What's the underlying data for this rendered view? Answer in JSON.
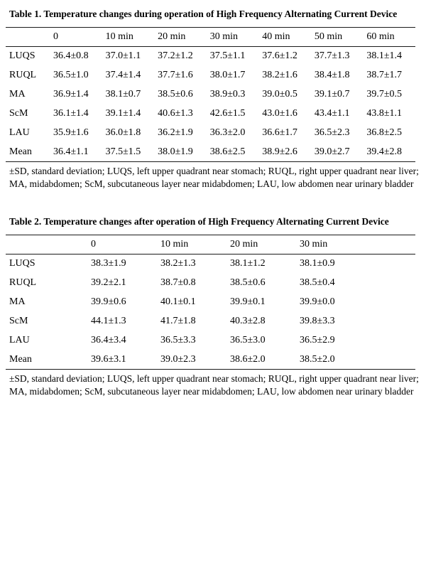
{
  "page": {
    "background": "#ffffff",
    "text_color": "#000000",
    "rule_color": "#1a1a1a"
  },
  "tables": [
    {
      "title": "Table 1. Temperature changes during operation of High Frequency Alternating Current Device",
      "columns": [
        "",
        "0",
        "10 min",
        "20 min",
        "30 min",
        "40 min",
        "50 min",
        "60 min"
      ],
      "rows": [
        {
          "label": "LUQS",
          "values": [
            "36.4±0.8",
            "37.0±1.1",
            "37.2±1.2",
            "37.5±1.1",
            "37.6±1.2",
            "37.7±1.3",
            "38.1±1.4"
          ]
        },
        {
          "label": "RUQL",
          "values": [
            "36.5±1.0",
            "37.4±1.4",
            "37.7±1.6",
            "38.0±1.7",
            "38.2±1.6",
            "38.4±1.8",
            "38.7±1.7"
          ]
        },
        {
          "label": "MA",
          "values": [
            "36.9±1.4",
            "38.1±0.7",
            "38.5±0.6",
            "38.9±0.3",
            "39.0±0.5",
            "39.1±0.7",
            "39.7±0.5"
          ]
        },
        {
          "label": "ScM",
          "values": [
            "36.1±1.4",
            "39.1±1.4",
            "40.6±1.3",
            "42.6±1.5",
            "43.0±1.6",
            "43.4±1.1",
            "43.8±1.1"
          ]
        },
        {
          "label": "LAU",
          "values": [
            "35.9±1.6",
            "36.0±1.8",
            "36.2±1.9",
            "36.3±2.0",
            "36.6±1.7",
            "36.5±2.3",
            "36.8±2.5"
          ]
        },
        {
          "label": "Mean",
          "values": [
            "36.4±1.1",
            "37.5±1.5",
            "38.0±1.9",
            "38.6±2.5",
            "38.9±2.6",
            "39.0±2.7",
            "39.4±2.8"
          ]
        }
      ],
      "footnote": "±SD, standard deviation; LUQS, left upper quadrant near stomach; RUQL, right upper quadrant near liver; MA, midabdomen; ScM, subcutaneous layer near midabdomen; LAU, low abdomen near urinary bladder"
    },
    {
      "title": "Table 2. Temperature changes after operation of High Frequency Alternating Current Device",
      "columns": [
        "",
        "0",
        "10 min",
        "20 min",
        "30 min"
      ],
      "rows": [
        {
          "label": "LUQS",
          "values": [
            "38.3±1.9",
            "38.2±1.3",
            "38.1±1.2",
            "38.1±0.9"
          ]
        },
        {
          "label": "RUQL",
          "values": [
            "39.2±2.1",
            "38.7±0.8",
            "38.5±0.6",
            "38.5±0.4"
          ]
        },
        {
          "label": "MA",
          "values": [
            "39.9±0.6",
            "40.1±0.1",
            "39.9±0.1",
            "39.9±0.0"
          ]
        },
        {
          "label": "ScM",
          "values": [
            "44.1±1.3",
            "41.7±1.8",
            "40.3±2.8",
            "39.8±3.3"
          ]
        },
        {
          "label": "LAU",
          "values": [
            "36.4±3.4",
            "36.5±3.3",
            "36.5±3.0",
            "36.5±2.9"
          ]
        },
        {
          "label": "Mean",
          "values": [
            "39.6±3.1",
            "39.0±2.3",
            "38.6±2.0",
            "38.5±2.0"
          ]
        }
      ],
      "footnote": "±SD, standard deviation; LUQS, left upper quadrant near stomach; RUQL, right upper quadrant near liver; MA, midabdomen; ScM, subcutaneous layer near midabdomen; LAU, low abdomen near urinary bladder"
    }
  ]
}
